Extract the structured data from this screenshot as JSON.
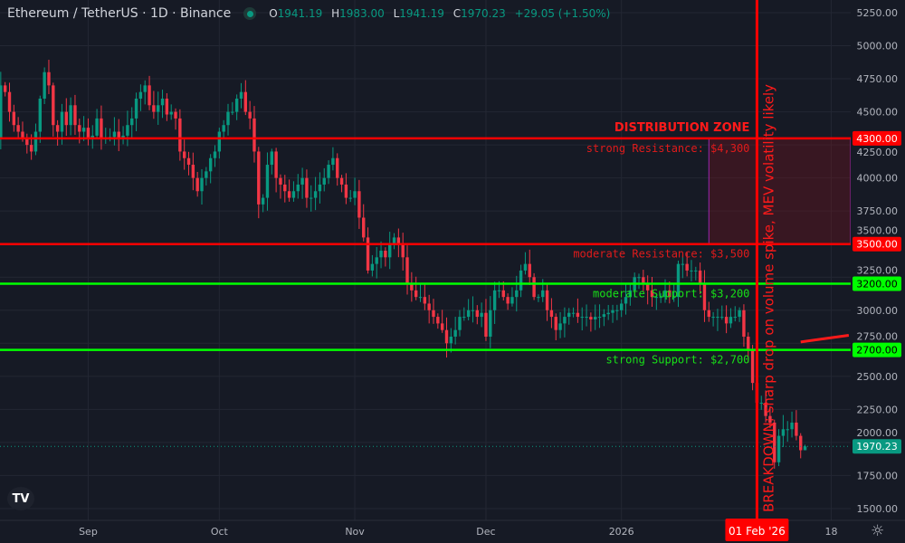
{
  "header": {
    "title": "Ethereum / TetherUS · 1D · Binance",
    "o_label": "O",
    "o": "1941.19",
    "h_label": "H",
    "h": "1983.00",
    "l_label": "L",
    "l": "1941.19",
    "c_label": "C",
    "c": "1970.23",
    "change": "+29.05 (+1.50%)"
  },
  "icons": {
    "logo": "tradingview-logo",
    "settings": "gear-icon",
    "status": "market-open-dot"
  },
  "colors": {
    "up": "#089981",
    "down": "#f23645",
    "resistance": "#ff0000",
    "support": "#00ff00",
    "zone": "#9c27b0",
    "background": "#161a25"
  },
  "chart_data": {
    "type": "candlestick",
    "title": "Ethereum / TetherUS · 1D · Binance",
    "ylim": [
      1450,
      5330
    ],
    "yticks": [
      1500,
      1750,
      2000,
      2250,
      2500,
      2750,
      3000,
      3250,
      3500,
      3750,
      4000,
      4250,
      4500,
      4750,
      5000,
      5250
    ],
    "ytick_labels": [
      "1500.00",
      "1750.00",
      "2000.00",
      "2250.00",
      "2500.00",
      "2750.00",
      "3000.00",
      "3250.00",
      "3500.00",
      "3750.00",
      "4000.00",
      "4250.00",
      "4500.00",
      "4750.00",
      "5000.00",
      "5250.00"
    ],
    "xticks": [
      {
        "label": "Sep",
        "date": "2025-09-01"
      },
      {
        "label": "Oct",
        "date": "2025-10-01"
      },
      {
        "label": "Nov",
        "date": "2025-11-01"
      },
      {
        "label": "Dec",
        "date": "2025-12-01"
      },
      {
        "label": "2026",
        "date": "2026-01-01"
      },
      {
        "label": "18",
        "date": "2026-02-18"
      }
    ],
    "start_date": "2025-08-11",
    "closes": [
      4300,
      4700,
      4650,
      4500,
      4400,
      4350,
      4300,
      4250,
      4200,
      4350,
      4600,
      4800,
      4700,
      4400,
      4350,
      4500,
      4400,
      4550,
      4400,
      4350,
      4380,
      4300,
      4320,
      4450,
      4300,
      4300,
      4310,
      4350,
      4300,
      4320,
      4400,
      4450,
      4600,
      4650,
      4700,
      4550,
      4500,
      4550,
      4600,
      4480,
      4500,
      4450,
      4200,
      4150,
      4100,
      4000,
      3900,
      4000,
      4050,
      4150,
      4200,
      4350,
      4400,
      4500,
      4500,
      4600,
      4650,
      4500,
      4450,
      4200,
      3800,
      3850,
      4100,
      4200,
      4000,
      3950,
      3900,
      3850,
      3900,
      3950,
      4000,
      3850,
      3850,
      3900,
      3950,
      4000,
      4100,
      4150,
      4000,
      3950,
      3850,
      3850,
      3900,
      3700,
      3550,
      3300,
      3350,
      3400,
      3450,
      3400,
      3500,
      3550,
      3500,
      3400,
      3200,
      3150,
      3100,
      3100,
      3050,
      3000,
      2950,
      2900,
      2850,
      2750,
      2800,
      2850,
      2950,
      2950,
      3000,
      3000,
      2950,
      2980,
      2800,
      3000,
      3150,
      3150,
      3100,
      3050,
      3100,
      3150,
      3300,
      3350,
      3250,
      3100,
      3100,
      3150,
      3000,
      2950,
      2850,
      2900,
      2950,
      2980,
      2980,
      2950,
      2950,
      2950,
      2930,
      2950,
      2950,
      2970,
      2980,
      3000,
      3000,
      3050,
      3100,
      3150,
      3250,
      3250,
      3200,
      3150,
      3100,
      3100,
      3100,
      3150,
      3100,
      3100,
      3350,
      3350,
      3300,
      3300,
      3300,
      3200,
      3000,
      2950,
      2950,
      2950,
      2950,
      2900,
      2950,
      2950,
      3000,
      2800,
      2700,
      2450,
      2300,
      2300,
      2200,
      2150,
      1850,
      2050,
      2100,
      2100,
      2150,
      2050,
      1941.19,
      1970.23
    ],
    "last_candle": {
      "open": 1941.19,
      "high": 1983.0,
      "low": 1941.19,
      "close": 1970.23
    },
    "current_price": {
      "value": 1970.23,
      "label": "1970.23"
    },
    "levels": [
      {
        "price": 4300,
        "label": "4300.00",
        "text": "strong Resistance: $4,300",
        "kind": "resistance"
      },
      {
        "price": 3500,
        "label": "3500.00",
        "text": "moderate Resistance: $3,500",
        "kind": "resistance"
      },
      {
        "price": 3200,
        "label": "3200.00",
        "text": "moderate Support: $3,200",
        "kind": "support"
      },
      {
        "price": 2700,
        "label": "2700.00",
        "text": "strong Support: $2,700",
        "kind": "support"
      }
    ],
    "zone": {
      "label": "DISTRIBUTION ZONE",
      "top": 4300,
      "bottom": 3500,
      "start_date": "2026-01-21"
    },
    "event": {
      "date": "2026-02-01",
      "date_label": "01 Feb '26",
      "text": "BREAKDOWN: sharp drop on volume spike, MEV volatility likely"
    },
    "trendline": {
      "from": {
        "date": "2026-02-11",
        "price": 2760
      },
      "to": {
        "date": "2026-02-22",
        "price": 2810
      }
    },
    "grid": true
  }
}
